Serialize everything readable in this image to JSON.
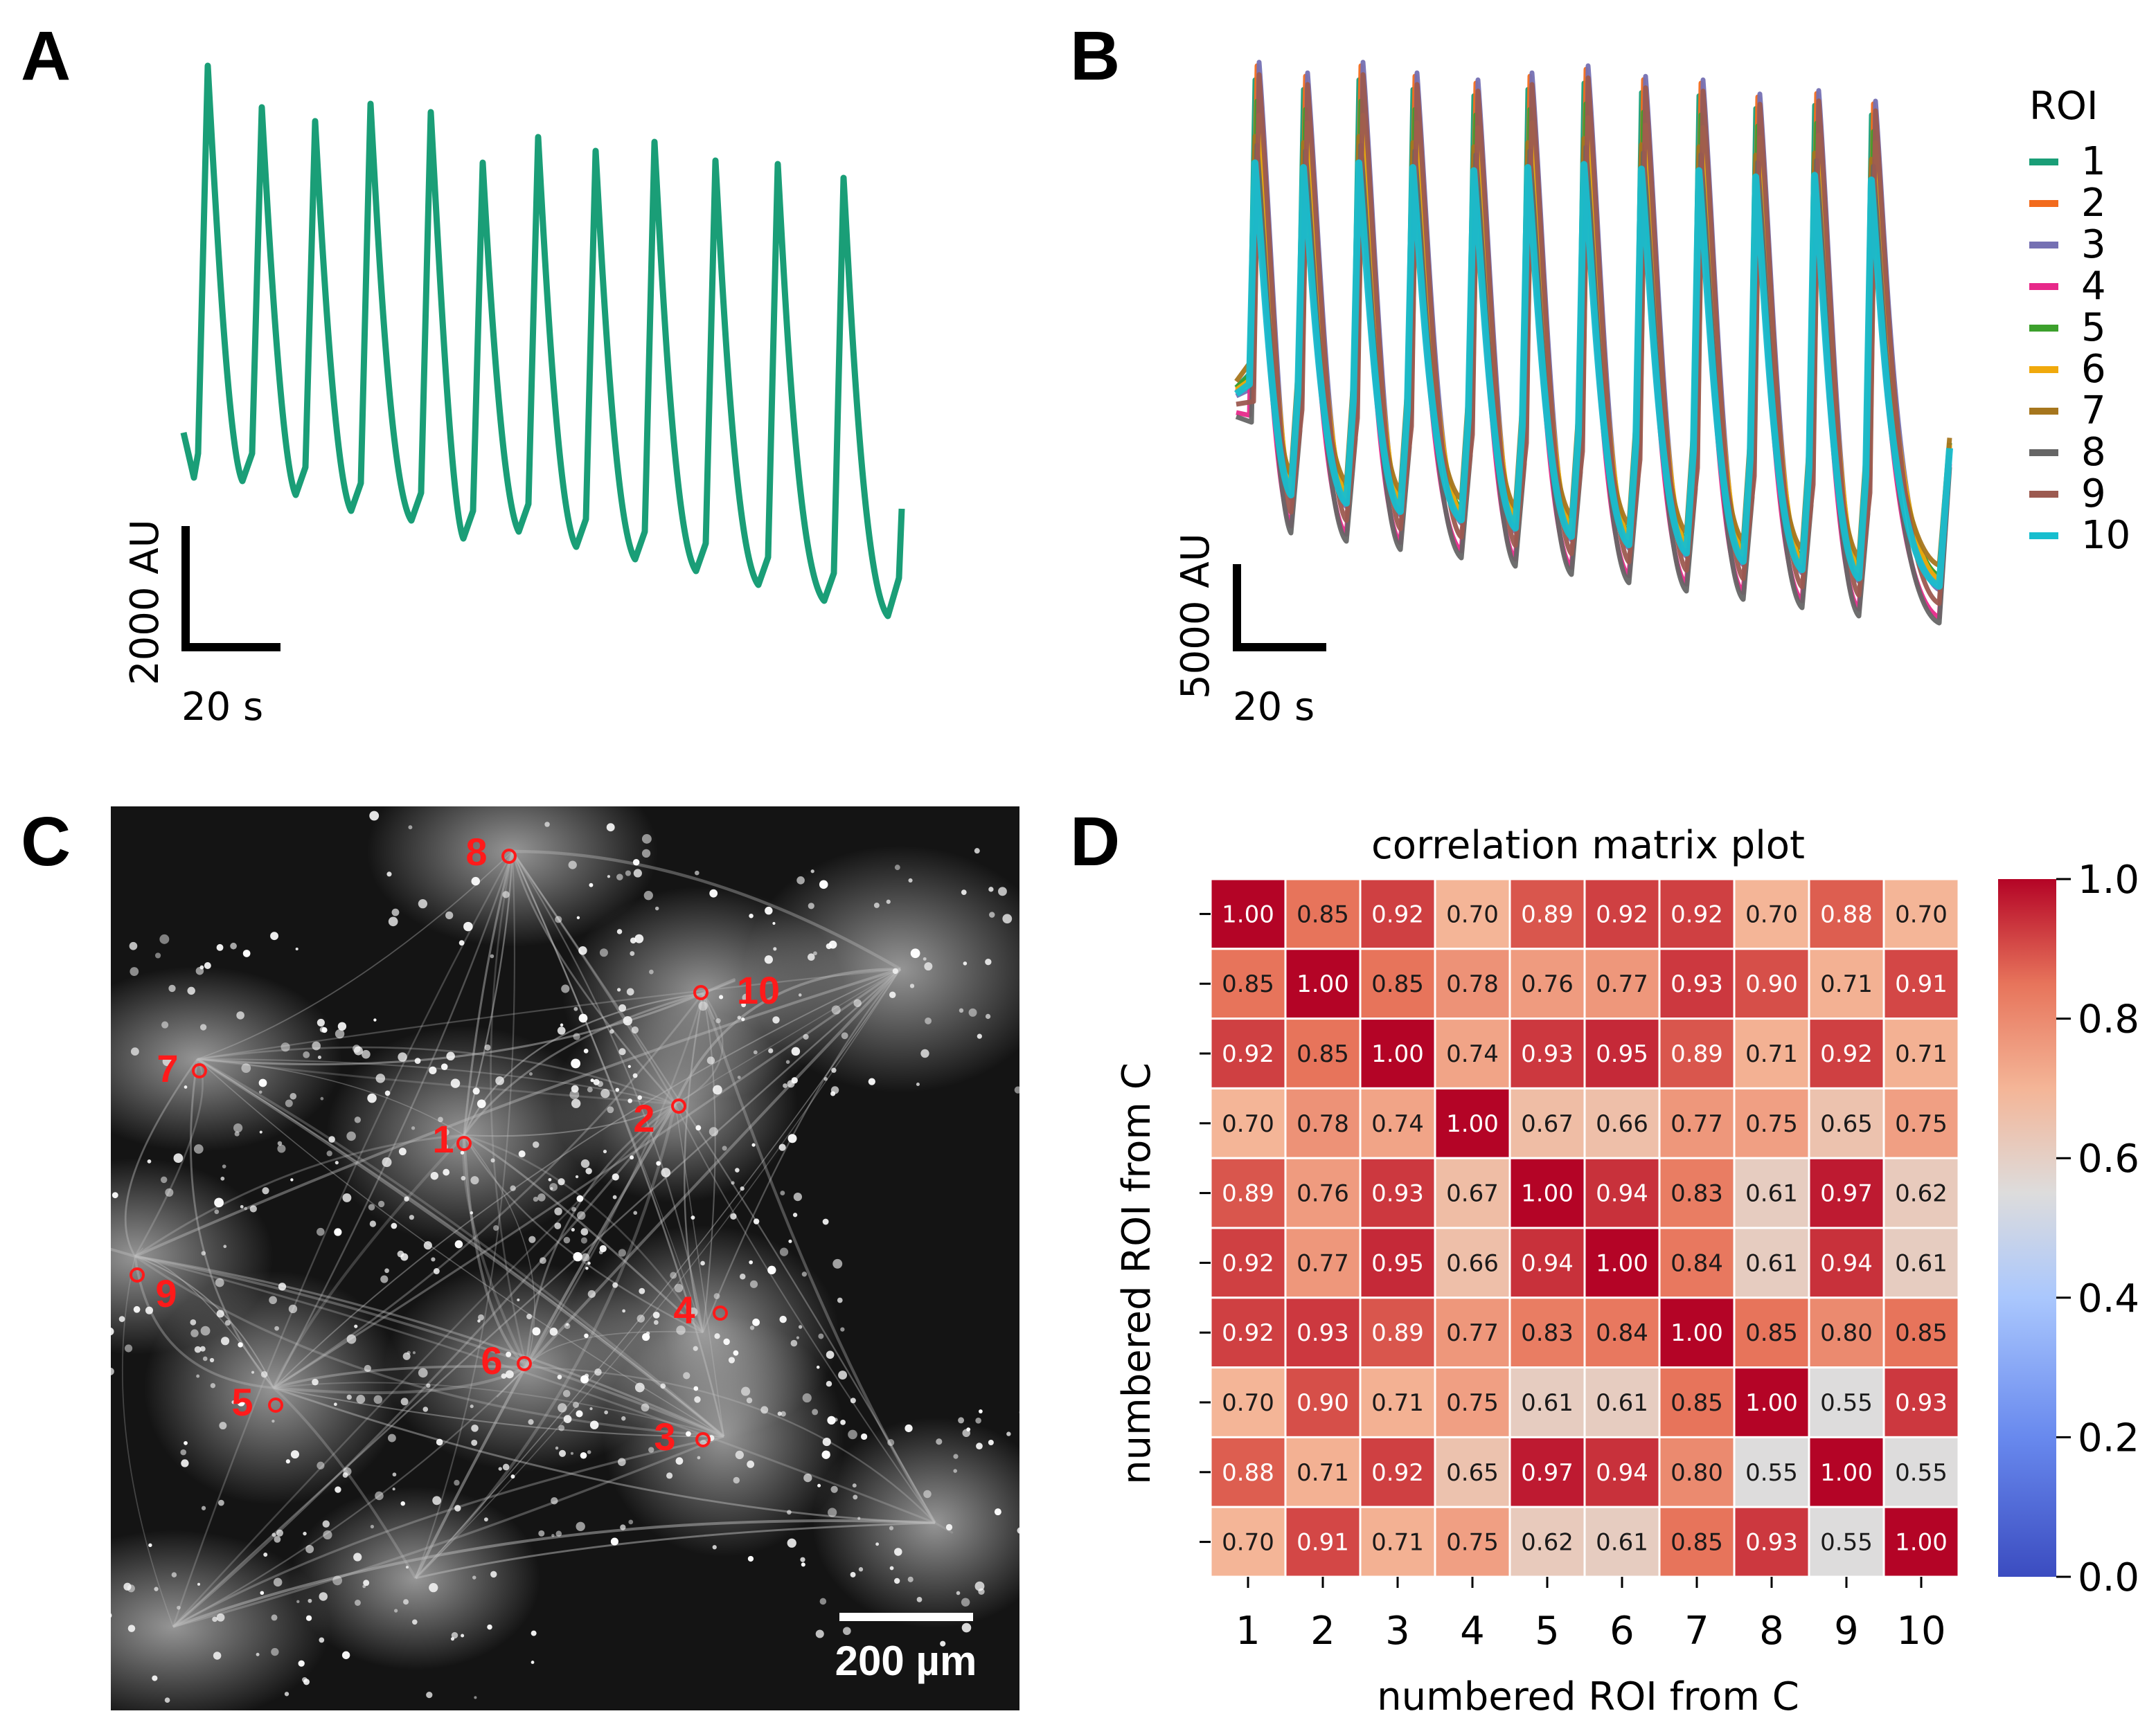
{
  "panels": {
    "a": {
      "label": "A",
      "scale_y": "2000 AU",
      "scale_x": "20 s"
    },
    "b": {
      "label": "B",
      "scale_y": "5000 AU",
      "scale_x": "20 s",
      "legend_title": "ROI"
    },
    "c": {
      "label": "C",
      "scale_bar": "200 µm"
    },
    "d": {
      "label": "D"
    }
  },
  "colors": {
    "trace_a": "#1a9e77",
    "roi_marker": "#ff1a1a"
  },
  "chart_data": [
    {
      "panel": "A",
      "type": "line",
      "description_units": "AU vs s",
      "peaks_count": 12
    },
    {
      "panel": "B",
      "type": "line",
      "legend": {
        "title": "ROI",
        "placement": "right"
      },
      "series": [
        {
          "name": "1",
          "color": "#1a9e77"
        },
        {
          "name": "2",
          "color": "#f26b1d"
        },
        {
          "name": "3",
          "color": "#7570b3"
        },
        {
          "name": "4",
          "color": "#e7298a"
        },
        {
          "name": "5",
          "color": "#3ca02c"
        },
        {
          "name": "6",
          "color": "#f0a90c"
        },
        {
          "name": "7",
          "color": "#a6761d"
        },
        {
          "name": "8",
          "color": "#666666"
        },
        {
          "name": "9",
          "color": "#9c5a50"
        },
        {
          "name": "10",
          "color": "#17becf"
        }
      ]
    },
    {
      "panel": "D",
      "type": "heatmap",
      "title": "correlation matrix plot",
      "xlabel": "numbered ROI from C",
      "ylabel": "numbered ROI from C",
      "categories": [
        "1",
        "2",
        "3",
        "4",
        "5",
        "6",
        "7",
        "8",
        "9",
        "10"
      ],
      "values": [
        [
          1.0,
          0.85,
          0.92,
          0.7,
          0.89,
          0.92,
          0.92,
          0.7,
          0.88,
          0.7
        ],
        [
          0.85,
          1.0,
          0.85,
          0.78,
          0.76,
          0.77,
          0.93,
          0.9,
          0.71,
          0.91
        ],
        [
          0.92,
          0.85,
          1.0,
          0.74,
          0.93,
          0.95,
          0.89,
          0.71,
          0.92,
          0.71
        ],
        [
          0.7,
          0.78,
          0.74,
          1.0,
          0.67,
          0.66,
          0.77,
          0.75,
          0.65,
          0.75
        ],
        [
          0.89,
          0.76,
          0.93,
          0.67,
          1.0,
          0.94,
          0.83,
          0.61,
          0.97,
          0.62
        ],
        [
          0.92,
          0.77,
          0.95,
          0.66,
          0.94,
          1.0,
          0.84,
          0.61,
          0.94,
          0.61
        ],
        [
          0.92,
          0.93,
          0.89,
          0.77,
          0.83,
          0.84,
          1.0,
          0.85,
          0.8,
          0.85
        ],
        [
          0.7,
          0.9,
          0.71,
          0.75,
          0.61,
          0.61,
          0.85,
          1.0,
          0.55,
          0.93
        ],
        [
          0.88,
          0.71,
          0.92,
          0.65,
          0.97,
          0.94,
          0.8,
          0.55,
          1.0,
          0.55
        ],
        [
          0.7,
          0.91,
          0.71,
          0.75,
          0.62,
          0.61,
          0.85,
          0.93,
          0.55,
          1.0
        ]
      ],
      "colorbar": {
        "ticks": [
          "0.0",
          "0.2",
          "0.4",
          "0.6",
          "0.8",
          "1.0"
        ],
        "range": [
          0,
          1
        ],
        "colormap": "coolwarm"
      }
    }
  ],
  "micrograph": {
    "rois": [
      {
        "label": "1"
      },
      {
        "label": "2"
      },
      {
        "label": "3"
      },
      {
        "label": "4"
      },
      {
        "label": "5"
      },
      {
        "label": "6"
      },
      {
        "label": "7"
      },
      {
        "label": "8"
      },
      {
        "label": "9"
      },
      {
        "label": "10"
      }
    ]
  }
}
